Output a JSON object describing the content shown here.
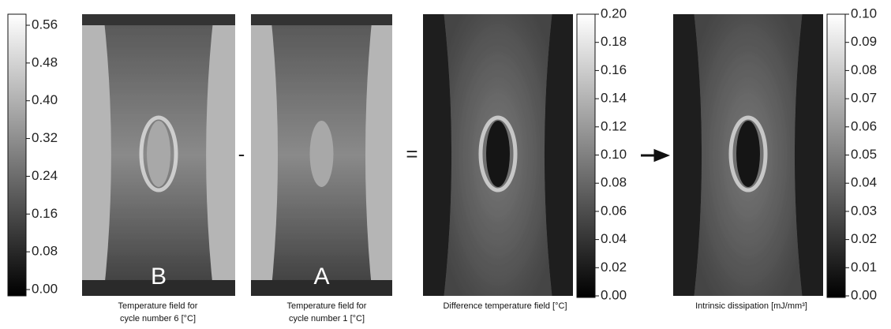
{
  "colorbars": [
    {
      "ticks": [
        "0.56",
        "0.48",
        "0.40",
        "0.32",
        "0.24",
        "0.16",
        "0.08",
        "0.00"
      ]
    },
    {
      "ticks": [
        "0.20",
        "0.18",
        "0.16",
        "0.14",
        "0.12",
        "0.10",
        "0.08",
        "0.06",
        "0.04",
        "0.02",
        "0.00"
      ]
    },
    {
      "ticks": [
        "0.10",
        "0.09",
        "0.08",
        "0.07",
        "0.06",
        "0.05",
        "0.04",
        "0.03",
        "0.02",
        "0.01",
        "0.00"
      ]
    }
  ],
  "panels": [
    {
      "letter": "B",
      "caption": [
        "Temperature field for",
        "cycle number 6 [°C]"
      ]
    },
    {
      "letter": "A",
      "caption": [
        "Temperature field for",
        "cycle number 1 [°C]"
      ]
    },
    {
      "caption": [
        "Difference temperature field [°C]"
      ]
    },
    {
      "caption": [
        "Intrinsic dissipation [mJ/mm³]"
      ]
    }
  ],
  "operators": [
    "-",
    "="
  ]
}
